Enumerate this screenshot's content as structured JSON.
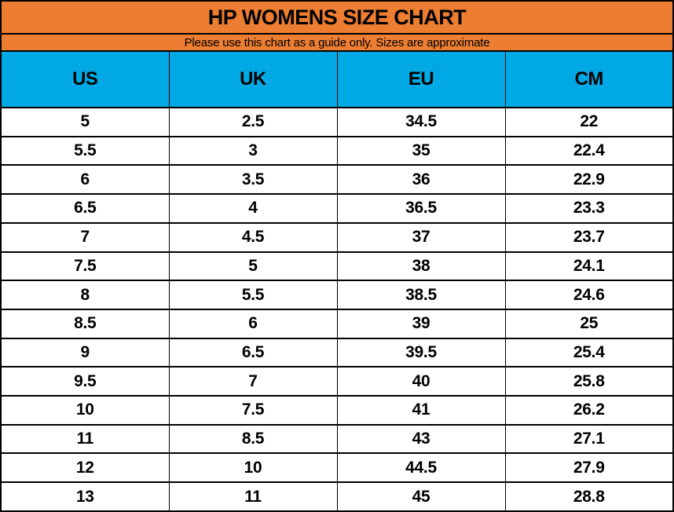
{
  "colors": {
    "band_orange": "#ED7D31",
    "header_blue": "#00A9E4",
    "grid_line": "#000000",
    "row_background": "#FFFFFF",
    "text": "#000000"
  },
  "chart_data": {
    "type": "table",
    "title": "HP WOMENS SIZE CHART",
    "subtitle": "Please use this chart as a guide only. Sizes are approximate",
    "columns": [
      "US",
      "UK",
      "EU",
      "CM"
    ],
    "rows": [
      [
        "5",
        "2.5",
        "34.5",
        "22"
      ],
      [
        "5.5",
        "3",
        "35",
        "22.4"
      ],
      [
        "6",
        "3.5",
        "36",
        "22.9"
      ],
      [
        "6.5",
        "4",
        "36.5",
        "23.3"
      ],
      [
        "7",
        "4.5",
        "37",
        "23.7"
      ],
      [
        "7.5",
        "5",
        "38",
        "24.1"
      ],
      [
        "8",
        "5.5",
        "38.5",
        "24.6"
      ],
      [
        "8.5",
        "6",
        "39",
        "25"
      ],
      [
        "9",
        "6.5",
        "39.5",
        "25.4"
      ],
      [
        "9.5",
        "7",
        "40",
        "25.8"
      ],
      [
        "10",
        "7.5",
        "41",
        "26.2"
      ],
      [
        "11",
        "8.5",
        "43",
        "27.1"
      ],
      [
        "12",
        "10",
        "44.5",
        "27.9"
      ],
      [
        "13",
        "11",
        "45",
        "28.8"
      ]
    ]
  }
}
